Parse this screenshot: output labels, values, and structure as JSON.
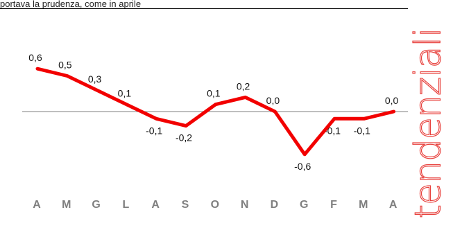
{
  "header": {
    "text": "portava la prudenza, come in aprile"
  },
  "side_label": "tendenziali",
  "chart_data": {
    "type": "line",
    "categories": [
      "A",
      "M",
      "G",
      "L",
      "A",
      "S",
      "O",
      "N",
      "D",
      "G",
      "F",
      "M",
      "A"
    ],
    "values": [
      0.6,
      0.5,
      0.3,
      0.1,
      -0.1,
      -0.2,
      0.1,
      0.2,
      0.0,
      -0.6,
      -0.1,
      -0.1,
      0.0
    ],
    "value_labels": [
      "0,6",
      "0,5",
      "0,3",
      "0,1",
      "-0,1",
      "-0,2",
      "0,1",
      "0,2",
      "0,0",
      "-0,6",
      "-0,1",
      "-0,1",
      "0,0"
    ],
    "ylim": [
      -0.6,
      0.6
    ],
    "zero_line": true,
    "grid": false,
    "legend": "none",
    "title": "",
    "xlabel": "",
    "ylabel": ""
  },
  "colors": {
    "line": "#f20000",
    "zero_line": "#7f7f7f",
    "category_text": "#7f7f7f",
    "label_text": "#111111",
    "side_label_stroke": "#e8433f"
  }
}
